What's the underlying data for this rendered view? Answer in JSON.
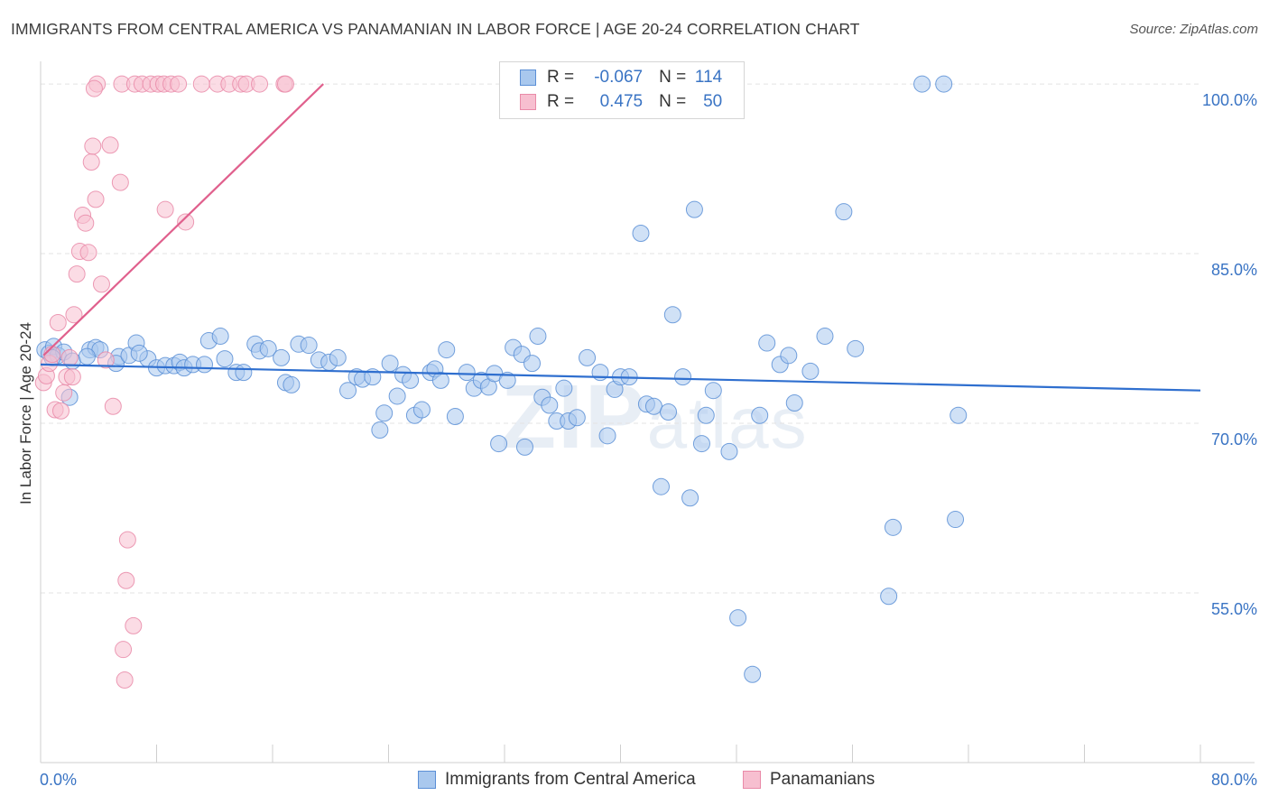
{
  "title": "IMMIGRANTS FROM CENTRAL AMERICA VS PANAMANIAN IN LABOR FORCE | AGE 20-24 CORRELATION CHART",
  "source": "Source: ZipAtlas.com",
  "watermark": {
    "a": "ZIP",
    "b": "atlas"
  },
  "legend": {
    "rows": [
      {
        "r_label": "R =",
        "r_value": "-0.067",
        "n_label": "N =",
        "n_value": "114"
      },
      {
        "r_label": "R =",
        "r_value": "0.475",
        "n_label": "N =",
        "n_value": "50"
      }
    ]
  },
  "colors": {
    "blue_fill": "#a9c8ee",
    "blue_stroke": "#5b8fd6",
    "blue_line": "#2f6fcf",
    "pink_fill": "#f7bfd0",
    "pink_stroke": "#e98aa8",
    "pink_line": "#e0608d",
    "grid": "#e3e3e3",
    "tick_label": "#3a74c4"
  },
  "chart_data": {
    "type": "scatter",
    "xlabel": "",
    "ylabel": "In Labor Force | Age 20-24",
    "xlim": [
      0,
      80
    ],
    "ylim": [
      40,
      102
    ],
    "x_tick_labels": [
      {
        "v": 0,
        "t": "0.0%"
      },
      {
        "v": 80,
        "t": "80.0%"
      }
    ],
    "y_tick_labels": [
      {
        "v": 55,
        "t": "55.0%"
      },
      {
        "v": 70,
        "t": "70.0%"
      },
      {
        "v": 85,
        "t": "85.0%"
      },
      {
        "v": 100,
        "t": "100.0%"
      }
    ],
    "y_grid": [
      55,
      70,
      85,
      100
    ],
    "series": [
      {
        "name": "Immigrants from Central America",
        "color": "blue",
        "trend": [
          [
            0,
            75.2
          ],
          [
            80,
            72.9
          ]
        ],
        "points": [
          [
            0.3,
            76.5
          ],
          [
            0.6,
            76.2
          ],
          [
            0.9,
            76.8
          ],
          [
            1.2,
            76.0
          ],
          [
            1.6,
            76.3
          ],
          [
            2.2,
            75.5
          ],
          [
            3.4,
            76.5
          ],
          [
            3.8,
            76.7
          ],
          [
            4.1,
            76.5
          ],
          [
            5.4,
            75.9
          ],
          [
            5.2,
            75.3
          ],
          [
            6.1,
            76.0
          ],
          [
            6.6,
            77.1
          ],
          [
            7.4,
            75.7
          ],
          [
            8.0,
            74.9
          ],
          [
            8.6,
            75.1
          ],
          [
            9.2,
            75.1
          ],
          [
            9.6,
            75.4
          ],
          [
            9.9,
            74.9
          ],
          [
            10.5,
            75.2
          ],
          [
            11.3,
            75.2
          ],
          [
            11.6,
            77.3
          ],
          [
            12.4,
            77.7
          ],
          [
            12.7,
            75.7
          ],
          [
            13.5,
            74.5
          ],
          [
            14.0,
            74.5
          ],
          [
            14.8,
            77.0
          ],
          [
            15.1,
            76.4
          ],
          [
            15.7,
            76.6
          ],
          [
            16.6,
            75.8
          ],
          [
            16.9,
            73.6
          ],
          [
            17.3,
            73.4
          ],
          [
            17.8,
            77.0
          ],
          [
            18.5,
            76.9
          ],
          [
            19.2,
            75.6
          ],
          [
            19.9,
            75.4
          ],
          [
            20.5,
            75.8
          ],
          [
            21.2,
            72.9
          ],
          [
            21.8,
            74.1
          ],
          [
            22.2,
            73.9
          ],
          [
            22.9,
            74.1
          ],
          [
            23.4,
            69.4
          ],
          [
            23.7,
            70.9
          ],
          [
            24.1,
            75.3
          ],
          [
            24.6,
            72.4
          ],
          [
            25.0,
            74.3
          ],
          [
            25.5,
            73.8
          ],
          [
            25.8,
            70.7
          ],
          [
            26.3,
            71.2
          ],
          [
            26.9,
            74.5
          ],
          [
            27.2,
            74.8
          ],
          [
            27.6,
            73.8
          ],
          [
            28.0,
            76.5
          ],
          [
            28.6,
            70.6
          ],
          [
            29.4,
            74.5
          ],
          [
            29.9,
            73.1
          ],
          [
            30.4,
            73.8
          ],
          [
            30.9,
            73.2
          ],
          [
            31.3,
            74.4
          ],
          [
            31.6,
            68.2
          ],
          [
            32.2,
            73.8
          ],
          [
            32.6,
            76.7
          ],
          [
            33.2,
            76.1
          ],
          [
            33.4,
            67.9
          ],
          [
            33.9,
            75.3
          ],
          [
            34.3,
            77.7
          ],
          [
            34.6,
            72.3
          ],
          [
            35.1,
            71.6
          ],
          [
            35.6,
            70.2
          ],
          [
            36.1,
            73.1
          ],
          [
            36.4,
            70.2
          ],
          [
            37.0,
            70.5
          ],
          [
            37.7,
            75.8
          ],
          [
            38.6,
            74.5
          ],
          [
            39.1,
            68.9
          ],
          [
            39.6,
            73.0
          ],
          [
            40.0,
            74.1
          ],
          [
            40.6,
            74.1
          ],
          [
            41.4,
            86.8
          ],
          [
            41.8,
            71.7
          ],
          [
            42.3,
            71.5
          ],
          [
            42.8,
            64.4
          ],
          [
            43.3,
            71.0
          ],
          [
            43.6,
            79.6
          ],
          [
            44.3,
            74.1
          ],
          [
            44.8,
            63.4
          ],
          [
            45.1,
            88.9
          ],
          [
            45.6,
            68.2
          ],
          [
            45.9,
            70.7
          ],
          [
            46.4,
            72.9
          ],
          [
            47.5,
            67.5
          ],
          [
            48.1,
            52.8
          ],
          [
            49.1,
            47.8
          ],
          [
            49.6,
            70.7
          ],
          [
            50.1,
            77.1
          ],
          [
            51.0,
            75.2
          ],
          [
            51.6,
            76.0
          ],
          [
            52.0,
            71.8
          ],
          [
            53.1,
            74.6
          ],
          [
            54.1,
            77.7
          ],
          [
            55.4,
            88.7
          ],
          [
            56.2,
            76.6
          ],
          [
            58.5,
            54.7
          ],
          [
            58.8,
            60.8
          ],
          [
            60.8,
            100.0
          ],
          [
            62.3,
            100.0
          ],
          [
            63.1,
            61.5
          ],
          [
            63.3,
            70.7
          ],
          [
            47.9,
            100.1
          ],
          [
            47.6,
            100.0
          ],
          [
            2.0,
            72.3
          ],
          [
            0.8,
            75.8
          ],
          [
            3.2,
            75.9
          ],
          [
            6.8,
            76.2
          ]
        ]
      },
      {
        "name": "Panamanians",
        "color": "pink",
        "trend": [
          [
            0.2,
            76.0
          ],
          [
            19.5,
            100.0
          ]
        ],
        "points": [
          [
            0.2,
            73.6
          ],
          [
            0.4,
            74.2
          ],
          [
            0.6,
            75.3
          ],
          [
            0.8,
            76.1
          ],
          [
            1.0,
            71.2
          ],
          [
            1.2,
            78.9
          ],
          [
            1.4,
            71.1
          ],
          [
            1.6,
            72.7
          ],
          [
            1.8,
            74.1
          ],
          [
            2.0,
            75.8
          ],
          [
            2.3,
            79.6
          ],
          [
            2.5,
            83.2
          ],
          [
            2.7,
            85.2
          ],
          [
            2.9,
            88.4
          ],
          [
            3.1,
            87.7
          ],
          [
            3.3,
            85.1
          ],
          [
            3.5,
            93.1
          ],
          [
            3.6,
            94.5
          ],
          [
            3.8,
            89.8
          ],
          [
            3.9,
            100.0
          ],
          [
            4.2,
            82.3
          ],
          [
            4.5,
            75.6
          ],
          [
            4.8,
            94.6
          ],
          [
            5.0,
            71.5
          ],
          [
            5.5,
            91.3
          ],
          [
            5.6,
            100.0
          ],
          [
            6.5,
            100.0
          ],
          [
            7.0,
            100.0
          ],
          [
            7.6,
            100.0
          ],
          [
            8.1,
            100.0
          ],
          [
            8.5,
            100.0
          ],
          [
            9.0,
            100.0
          ],
          [
            9.5,
            100.0
          ],
          [
            11.1,
            100.0
          ],
          [
            12.2,
            100.0
          ],
          [
            13.0,
            100.0
          ],
          [
            13.8,
            100.0
          ],
          [
            14.2,
            100.0
          ],
          [
            15.1,
            100.0
          ],
          [
            16.8,
            100.0
          ],
          [
            3.7,
            99.6
          ],
          [
            16.9,
            100.0
          ],
          [
            10.0,
            87.8
          ],
          [
            8.6,
            88.9
          ],
          [
            6.0,
            59.7
          ],
          [
            5.9,
            56.1
          ],
          [
            6.4,
            52.1
          ],
          [
            5.7,
            50.0
          ],
          [
            5.8,
            47.3
          ],
          [
            2.2,
            74.1
          ]
        ]
      }
    ]
  }
}
